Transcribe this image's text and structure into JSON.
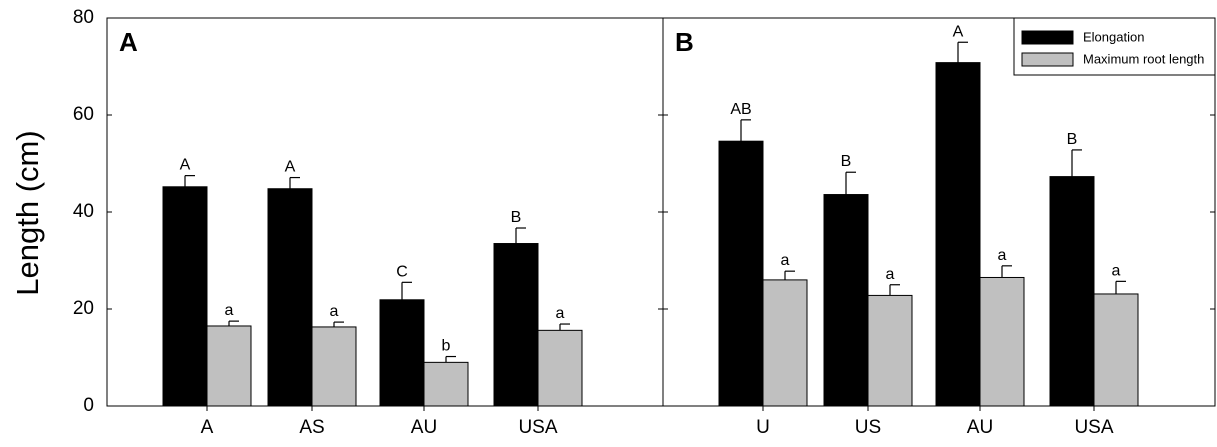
{
  "ylabel": "Length (cm)",
  "y_ticks": [
    "0",
    "20",
    "40",
    "60",
    "80"
  ],
  "legend": [
    {
      "label": "Elongation",
      "color": "#000000"
    },
    {
      "label": "Maximum root length",
      "color": "#c0c0c0"
    }
  ],
  "chart_data": {
    "type": "bar",
    "ylabel": "Length (cm)",
    "ylim": [
      0,
      80
    ],
    "legend_position": "top-right",
    "panels": [
      {
        "label": "A",
        "categories": [
          "A",
          "AS",
          "AU",
          "USA"
        ],
        "series": [
          {
            "name": "Elongation",
            "color": "#000000",
            "values": [
              45.2,
              44.8,
              21.9,
              33.5
            ],
            "errors": [
              2.3,
              2.3,
              3.6,
              3.2
            ],
            "letters": [
              "A",
              "A",
              "C",
              "B"
            ]
          },
          {
            "name": "Maximum root length",
            "color": "#c0c0c0",
            "values": [
              16.5,
              16.3,
              9.0,
              15.6
            ],
            "errors": [
              1.0,
              1.0,
              1.2,
              1.3
            ],
            "letters": [
              "a",
              "a",
              "b",
              "a"
            ]
          }
        ]
      },
      {
        "label": "B",
        "categories": [
          "U",
          "US",
          "AU",
          "USA"
        ],
        "series": [
          {
            "name": "Elongation",
            "color": "#000000",
            "values": [
              54.6,
              43.6,
              70.8,
              47.3
            ],
            "errors": [
              4.4,
              4.6,
              4.2,
              5.5
            ],
            "letters": [
              "AB",
              "B",
              "A",
              "B"
            ]
          },
          {
            "name": "Maximum root length",
            "color": "#c0c0c0",
            "values": [
              26.0,
              22.8,
              26.5,
              23.1
            ],
            "errors": [
              1.8,
              2.2,
              2.4,
              2.6
            ],
            "letters": [
              "a",
              "a",
              "a",
              "a"
            ]
          }
        ]
      }
    ]
  }
}
